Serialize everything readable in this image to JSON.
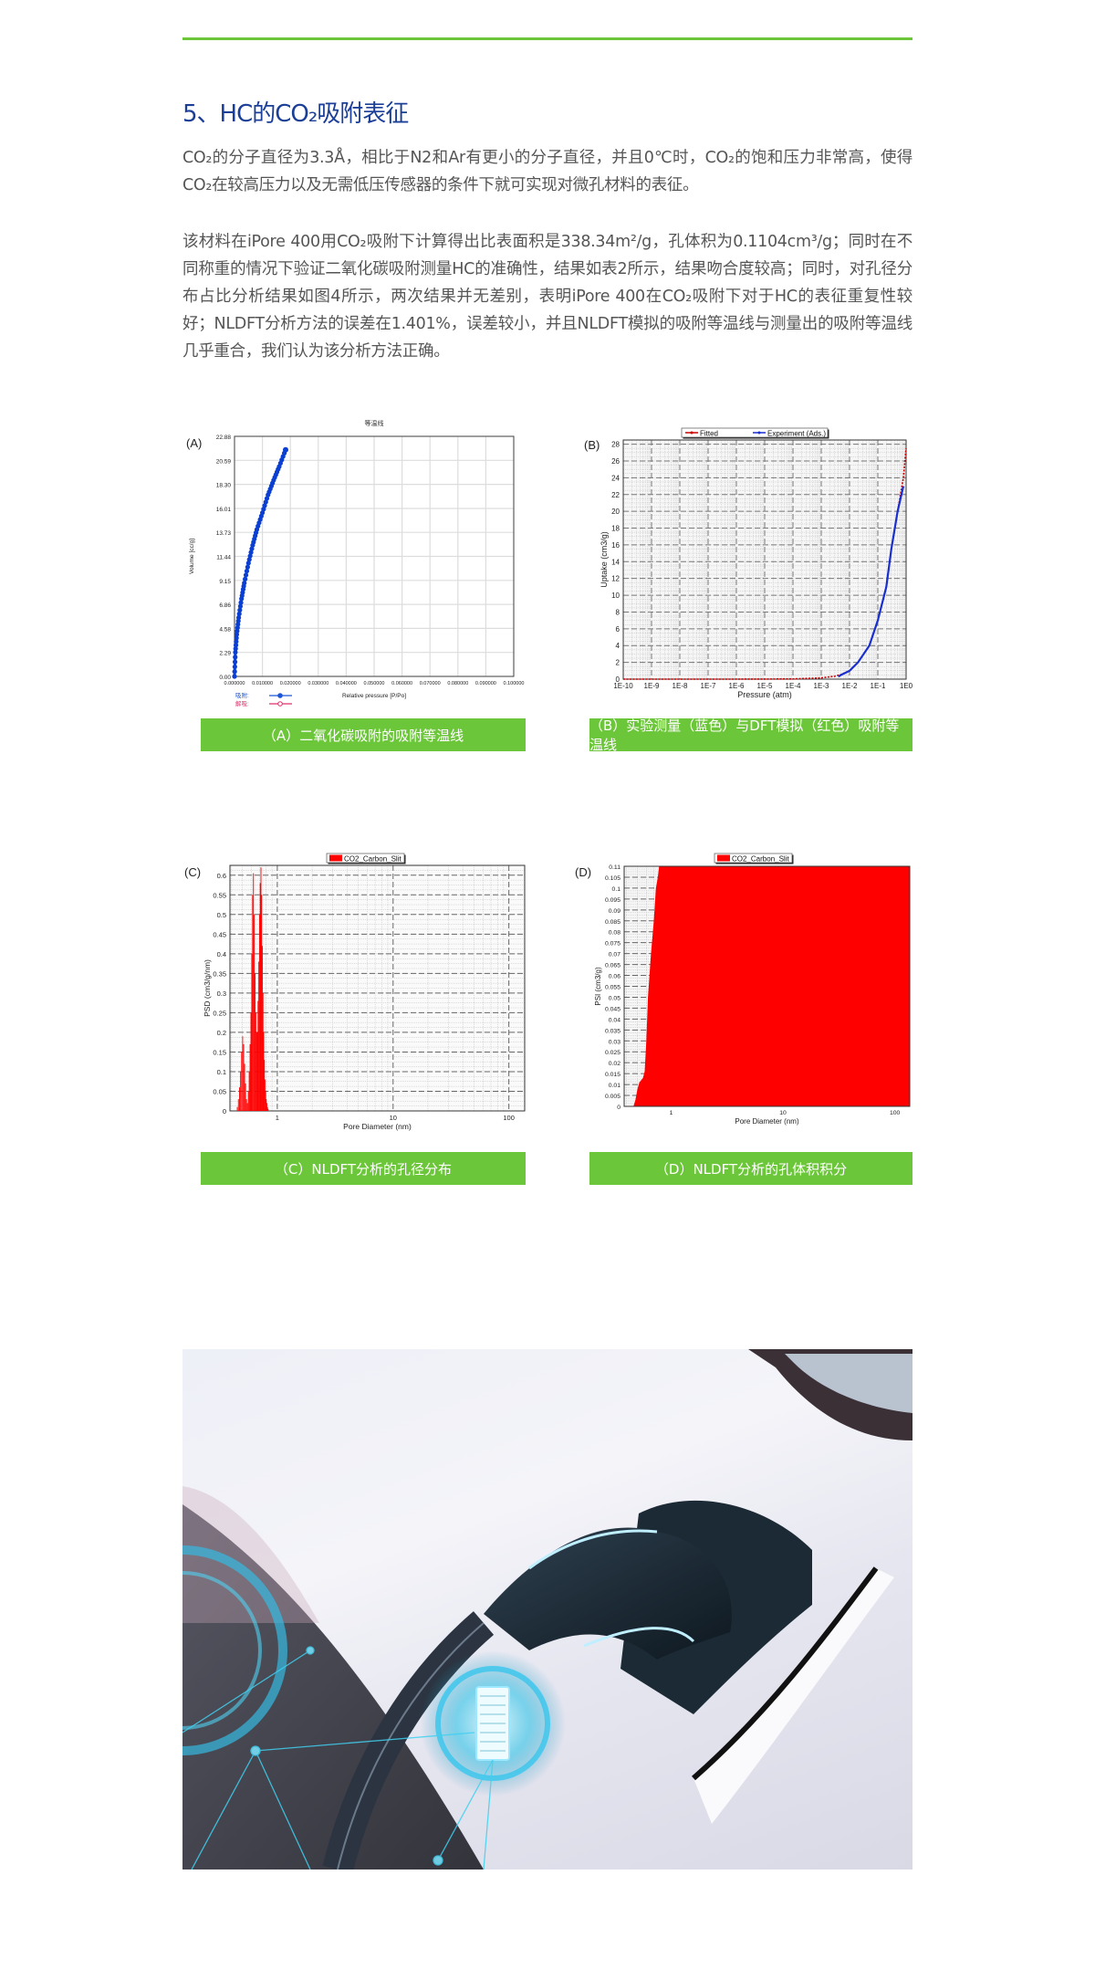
{
  "section": {
    "title": "5、HC的CO₂吸附表征",
    "paragraphs": [
      "CO₂的分子直径为3.3Å，相比于N2和Ar有更小的分子直径，并且0℃时，CO₂的饱和压力非常高，使得CO₂在较高压力以及无需低压传感器的条件下就可实现对微孔材料的表征。",
      "该材料在iPore 400用CO₂吸附下计算得出比表面积是338.34m²/g，孔体积为0.1104cm³/g；同时在不同称重的情况下验证二氧化碳吸附测量HC的准确性，结果如表2所示，结果吻合度较高；同时，对孔径分布占比分析结果如图4所示，两次结果并无差别，表明iPore 400在CO₂吸附下对于HC的表征重复性较好；NLDFT分析方法的误差在1.401%，误差较小，并且NLDFT模拟的吸附等温线与测量出的吸附等温线几乎重合，我们认为该分析方法正确。"
    ]
  },
  "colors": {
    "accent": "#6cc63a",
    "title": "#1b3f97",
    "text": "#555555",
    "series_blue": "#0a3fd1",
    "series_red": "#ff0000"
  },
  "captions": {
    "a": "（A）二氧化碳吸附的吸附等温线",
    "b": "（B）实验测量（蓝色）与DFT模拟（红色）吸附等温线",
    "c": "（C）NLDFT分析的孔径分布",
    "d": "（D）NLDFT分析的孔体积积分"
  },
  "chart_data": [
    {
      "panel": "(A)",
      "type": "scatter",
      "title": "等温线",
      "xlabel": "Relative pressure [P/Po]",
      "ylabel": "Volume [cc/g]",
      "xlim": [
        0,
        0.1
      ],
      "ylim": [
        0,
        22.88
      ],
      "grid": true,
      "xticks": [
        "0.000000",
        "0.010000",
        "0.020000",
        "0.030000",
        "0.040000",
        "0.050000",
        "0.060000",
        "0.070000",
        "0.080000",
        "0.090000",
        "0.100000"
      ],
      "yticks": [
        "0.00",
        "2.29",
        "4.58",
        "6.86",
        "9.15",
        "11.44",
        "13.73",
        "16.01",
        "18.30",
        "20.59",
        "22.88"
      ],
      "legend": [
        {
          "name": "吸附:",
          "color": "#1a56d6"
        },
        {
          "name": "解吸:",
          "color": "#e0306a"
        }
      ],
      "series": [
        {
          "name": "吸附:",
          "x": [
            0,
            0.0003,
            0.0008,
            0.0015,
            0.0025,
            0.0035,
            0.005,
            0.0065,
            0.008,
            0.01,
            0.012,
            0.014,
            0.016,
            0.0183
          ],
          "y": [
            0,
            2.3,
            4.0,
            5.6,
            7.4,
            8.9,
            10.8,
            12.5,
            14.0,
            15.6,
            17.3,
            18.7,
            20.0,
            21.6
          ]
        }
      ]
    },
    {
      "panel": "(B)",
      "type": "line",
      "xscale": "log",
      "xlabel": "Pressure (atm)",
      "ylabel": "Uptake (cm3/g)",
      "xlim": [
        1e-10,
        1
      ],
      "ylim": [
        0,
        28.5
      ],
      "grid": true,
      "legend_position": "top",
      "xticks": [
        "1E-10",
        "1E-9",
        "1E-8",
        "1E-7",
        "1E-6",
        "1E-5",
        "1E-4",
        "1E-3",
        "1E-2",
        "1E-1",
        "1E0"
      ],
      "yticks": [
        "0",
        "2",
        "4",
        "6",
        "8",
        "10",
        "12",
        "14",
        "16",
        "18",
        "20",
        "22",
        "24",
        "26",
        "28"
      ],
      "series": [
        {
          "name": "Fitted",
          "color": "#cc0000",
          "x": [
            1e-10,
            1e-06,
            0.0001,
            0.001,
            0.003,
            0.005,
            0.01,
            0.02,
            0.05,
            0.1,
            0.2,
            0.3,
            0.5,
            0.8,
            1
          ],
          "y": [
            0,
            0,
            0.02,
            0.15,
            0.35,
            0.55,
            1.0,
            2.0,
            4.0,
            7.0,
            11.0,
            15.5,
            20.0,
            24.0,
            27.5
          ]
        },
        {
          "name": "Experiment (Ads.)",
          "color": "#1a2fd0",
          "x": [
            0.004,
            0.005,
            0.01,
            0.02,
            0.05,
            0.1,
            0.2,
            0.3,
            0.5,
            0.8
          ],
          "y": [
            0.3,
            0.5,
            1.0,
            2.0,
            4.0,
            7.0,
            11.0,
            15.5,
            20.0,
            23.0
          ]
        }
      ]
    },
    {
      "panel": "(C)",
      "type": "bar",
      "xscale": "log",
      "xlabel": "Pore Diameter (nm)",
      "ylabel": "PSD (cm3/g/nm)",
      "xlim": [
        0.39,
        137
      ],
      "ylim": [
        0,
        0.625
      ],
      "grid": true,
      "legend_position": "top",
      "xticks": [
        "1",
        "10",
        "100"
      ],
      "yticks": [
        "0",
        "0.05",
        "0.1",
        "0.15",
        "0.2",
        "0.25",
        "0.3",
        "0.35",
        "0.4",
        "0.45",
        "0.5",
        "0.55",
        "0.6"
      ],
      "series": [
        {
          "name": "CO2_Carbon_Slit",
          "color": "#ff0000",
          "x": [
            0.44,
            0.45,
            0.46,
            0.47,
            0.48,
            0.49,
            0.5,
            0.51,
            0.52,
            0.53,
            0.54,
            0.55,
            0.56,
            0.57,
            0.58,
            0.59,
            0.6,
            0.61,
            0.62,
            0.63,
            0.64,
            0.65,
            0.66,
            0.67,
            0.68,
            0.69,
            0.7,
            0.71,
            0.72,
            0.73,
            0.74,
            0.75,
            0.76,
            0.77,
            0.78,
            0.79,
            0.8,
            0.81,
            0.82,
            0.83,
            0.84
          ],
          "y": [
            0.0,
            0.01,
            0.03,
            0.06,
            0.1,
            0.15,
            0.19,
            0.17,
            0.12,
            0.07,
            0.03,
            0.02,
            0.05,
            0.1,
            0.17,
            0.25,
            0.4,
            0.55,
            0.605,
            0.5,
            0.35,
            0.25,
            0.2,
            0.2,
            0.28,
            0.38,
            0.5,
            0.58,
            0.62,
            0.55,
            0.42,
            0.3,
            0.2,
            0.13,
            0.08,
            0.05,
            0.03,
            0.02,
            0.01,
            0.005,
            0.0
          ]
        }
      ]
    },
    {
      "panel": "(D)",
      "type": "area",
      "xscale": "log",
      "xlabel": "Pore Diameter (nm)",
      "ylabel": "PSI (cm3/g)",
      "xlim": [
        0.38,
        136
      ],
      "ylim": [
        0,
        0.11
      ],
      "grid": true,
      "legend_position": "top",
      "xticks": [
        "1",
        "10",
        "100"
      ],
      "yticks": [
        "0",
        "0.005",
        "0.01",
        "0.015",
        "0.02",
        "0.025",
        "0.03",
        "0.035",
        "0.04",
        "0.045",
        "0.05",
        "0.055",
        "0.06",
        "0.065",
        "0.07",
        "0.075",
        "0.08",
        "0.085",
        "0.09",
        "0.095",
        "0.1",
        "0.105",
        "0.11"
      ],
      "series": [
        {
          "name": "CO2_Carbon_Slit",
          "color": "#ff0000",
          "x": [
            0.46,
            0.48,
            0.5,
            0.52,
            0.56,
            0.58,
            0.6,
            0.62,
            0.66,
            0.7,
            0.73,
            0.76,
            0.78,
            136
          ],
          "y": [
            0,
            0.003,
            0.008,
            0.011,
            0.013,
            0.016,
            0.03,
            0.05,
            0.07,
            0.085,
            0.1,
            0.105,
            0.11,
            0.11
          ]
        }
      ]
    }
  ]
}
